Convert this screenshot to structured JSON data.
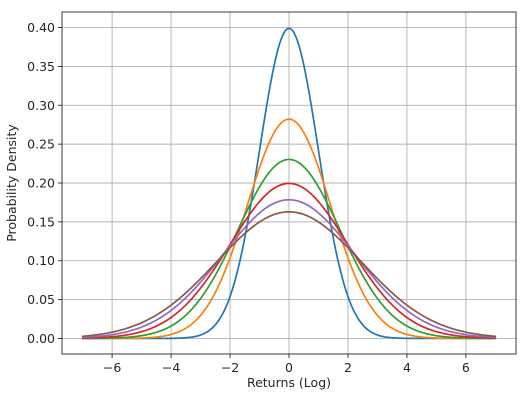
{
  "chart_data": {
    "type": "line",
    "title": "",
    "xlabel": "Returns (Log)",
    "ylabel": "Probability Density",
    "xlim": [
      -7.7,
      7.7
    ],
    "ylim": [
      -0.02,
      0.42
    ],
    "x_range": [
      -7,
      7
    ],
    "x_ticks": [
      -6,
      -4,
      -2,
      0,
      2,
      4,
      6
    ],
    "x_tick_labels": [
      "−6",
      "−4",
      "−2",
      "0",
      "2",
      "4",
      "6"
    ],
    "y_ticks": [
      0.0,
      0.05,
      0.1,
      0.15,
      0.2,
      0.25,
      0.3,
      0.35,
      0.4
    ],
    "y_tick_labels": [
      "0.00",
      "0.05",
      "0.10",
      "0.15",
      "0.20",
      "0.25",
      "0.30",
      "0.35",
      "0.40"
    ],
    "grid": true,
    "legend": "none",
    "series": [
      {
        "mean": 0,
        "std": 1.0,
        "peak": 0.399,
        "color": "#1f77b4"
      },
      {
        "mean": 0,
        "std": 1.414,
        "peak": 0.282,
        "color": "#ff7f0e"
      },
      {
        "mean": 0,
        "std": 1.732,
        "peak": 0.23,
        "color": "#2ca02c"
      },
      {
        "mean": 0,
        "std": 2.0,
        "peak": 0.199,
        "color": "#d62728"
      },
      {
        "mean": 0,
        "std": 2.236,
        "peak": 0.178,
        "color": "#9467bd"
      },
      {
        "mean": 0,
        "std": 2.449,
        "peak": 0.163,
        "color": "#8c564b"
      }
    ]
  }
}
